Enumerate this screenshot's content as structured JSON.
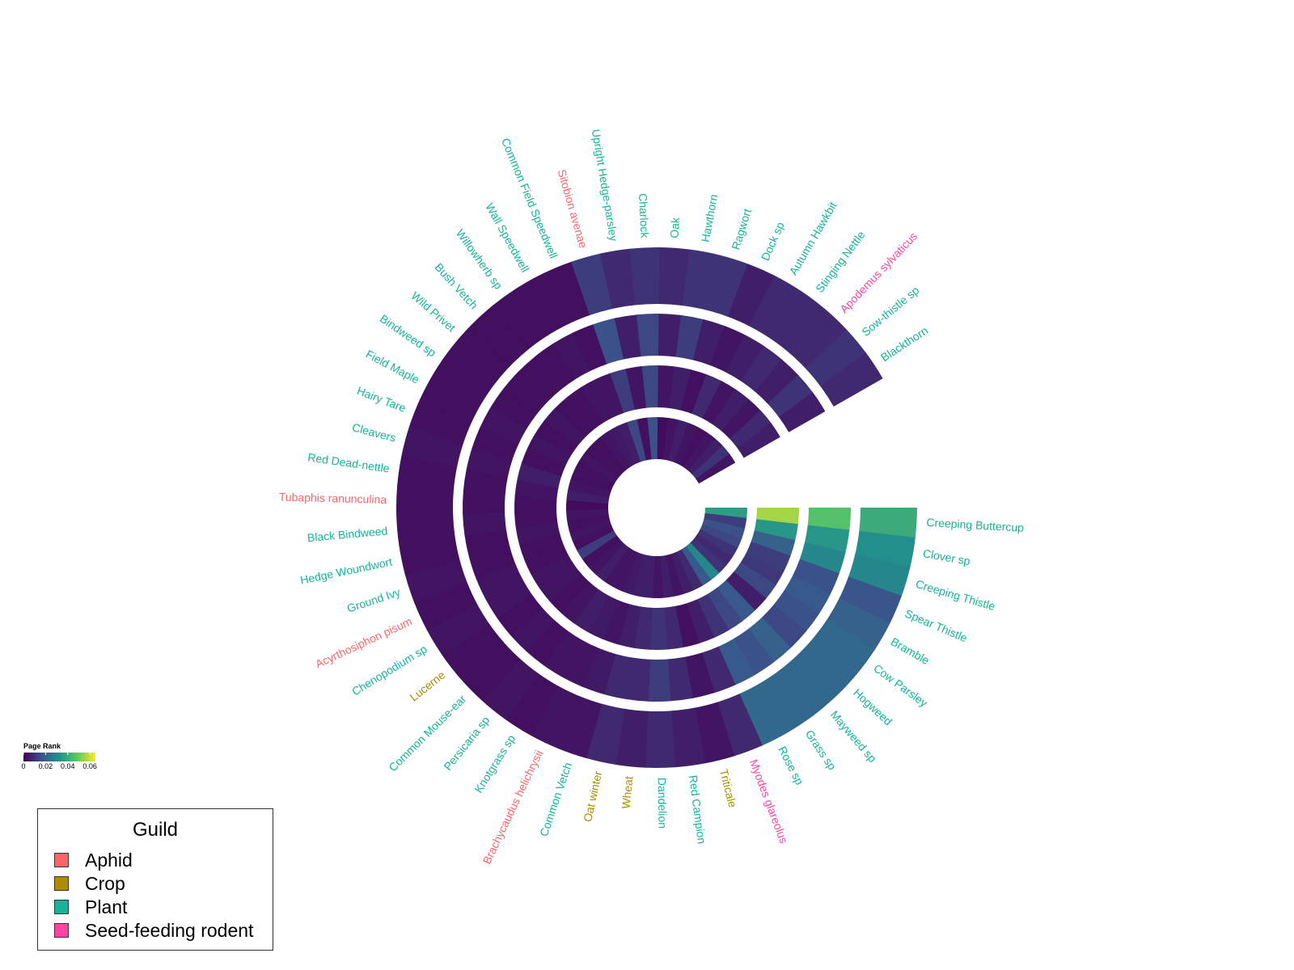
{
  "chart_data": {
    "type": "radial_heatmap",
    "title": "",
    "colorbar": {
      "title": "Page Rank",
      "ticks": [
        "0",
        "0.02",
        "0.04",
        "0.06"
      ],
      "tick_values": [
        0,
        0.02,
        0.04,
        0.06
      ],
      "range": [
        0,
        0.065
      ],
      "colormap": "viridis"
    },
    "rings": 4,
    "categories": [
      {
        "label": "Creeping Buttercup",
        "guild": "Plant",
        "values": [
          0.036,
          0.056,
          0.046,
          0.04
        ]
      },
      {
        "label": "Clover sp",
        "guild": "Plant",
        "values": [
          0.012,
          0.034,
          0.034,
          0.032
        ]
      },
      {
        "label": "Creeping Thistle",
        "guild": "Plant",
        "values": [
          0.016,
          0.02,
          0.03,
          0.03
        ]
      },
      {
        "label": "Spear Thistle",
        "guild": "Plant",
        "values": [
          0.014,
          0.012,
          0.016,
          0.017
        ]
      },
      {
        "label": "Bramble",
        "guild": "Plant",
        "values": [
          0.01,
          0.011,
          0.018,
          0.02
        ]
      },
      {
        "label": "Cow Parsley",
        "guild": "Plant",
        "values": [
          0.008,
          0.014,
          0.016,
          0.022
        ]
      },
      {
        "label": "Hogweed",
        "guild": "Plant",
        "values": [
          0.01,
          0.006,
          0.014,
          0.022
        ]
      },
      {
        "label": "Mayweed sp",
        "guild": "Plant",
        "values": [
          0.03,
          0.018,
          0.02,
          0.022
        ]
      },
      {
        "label": "Grass sp",
        "guild": "Plant",
        "values": [
          0.018,
          0.014,
          0.016,
          0.022
        ]
      },
      {
        "label": "Rose sp",
        "guild": "Plant",
        "values": [
          0.008,
          0.01,
          0.018,
          0.022
        ]
      },
      {
        "label": "Myodes glareolus",
        "guild": "Seed-feeding rodent",
        "values": [
          0.006,
          0.006,
          0.008,
          0.008
        ]
      },
      {
        "label": "Triticale",
        "guild": "Crop",
        "values": [
          0.004,
          0.003,
          0.004,
          0.004
        ]
      },
      {
        "label": "Red Campion",
        "guild": "Plant",
        "values": [
          0.006,
          0.008,
          0.008,
          0.006
        ]
      },
      {
        "label": "Dandelion",
        "guild": "Plant",
        "values": [
          0.004,
          0.01,
          0.012,
          0.008
        ]
      },
      {
        "label": "Wheat",
        "guild": "Crop",
        "values": [
          0.006,
          0.008,
          0.008,
          0.006
        ]
      },
      {
        "label": "Oat winter",
        "guild": "Crop",
        "values": [
          0.006,
          0.006,
          0.008,
          0.008
        ]
      },
      {
        "label": "Common Vetch",
        "guild": "Plant",
        "values": [
          0.005,
          0.004,
          0.005,
          0.004
        ]
      },
      {
        "label": "Brachycaudus helichrysii",
        "guild": "Aphid",
        "values": [
          0.004,
          0.005,
          0.004,
          0.004
        ]
      },
      {
        "label": "Knotgrass sp",
        "guild": "Plant",
        "values": [
          0.004,
          0.006,
          0.004,
          0.003
        ]
      },
      {
        "label": "Persicaria sp",
        "guild": "Plant",
        "values": [
          0.006,
          0.004,
          0.003,
          0.004
        ]
      },
      {
        "label": "Common Mouse-ear",
        "guild": "Plant",
        "values": [
          0.004,
          0.003,
          0.004,
          0.003
        ]
      },
      {
        "label": "Lucerne",
        "guild": "Crop",
        "values": [
          0.003,
          0.004,
          0.003,
          0.003
        ]
      },
      {
        "label": "Chenopodium sp",
        "guild": "Plant",
        "values": [
          0.012,
          0.004,
          0.004,
          0.004
        ]
      },
      {
        "label": "Acyrthosiphon pisum",
        "guild": "Aphid",
        "values": [
          0.003,
          0.003,
          0.004,
          0.003
        ]
      },
      {
        "label": "Ground Ivy",
        "guild": "Plant",
        "values": [
          0.004,
          0.003,
          0.003,
          0.004
        ]
      },
      {
        "label": "Hedge Woundwort",
        "guild": "Plant",
        "values": [
          0.003,
          0.004,
          0.003,
          0.003
        ]
      },
      {
        "label": "Black Bindweed",
        "guild": "Plant",
        "values": [
          0.004,
          0.003,
          0.004,
          0.003
        ]
      },
      {
        "label": "Tubaphis ranunculina",
        "guild": "Aphid",
        "values": [
          0.002,
          0.003,
          0.003,
          0.003
        ]
      },
      {
        "label": "Red Dead-nettle",
        "guild": "Plant",
        "values": [
          0.006,
          0.004,
          0.003,
          0.003
        ]
      },
      {
        "label": "Cleavers",
        "guild": "Plant",
        "values": [
          0.004,
          0.006,
          0.004,
          0.004
        ]
      },
      {
        "label": "Hairy Tare",
        "guild": "Plant",
        "values": [
          0.003,
          0.003,
          0.003,
          0.003
        ]
      },
      {
        "label": "Field Maple",
        "guild": "Plant",
        "values": [
          0.003,
          0.004,
          0.004,
          0.003
        ]
      },
      {
        "label": "Bindweed sp",
        "guild": "Plant",
        "values": [
          0.004,
          0.003,
          0.003,
          0.003
        ]
      },
      {
        "label": "Wild Privet",
        "guild": "Plant",
        "values": [
          0.003,
          0.004,
          0.003,
          0.003
        ]
      },
      {
        "label": "Bush Vetch",
        "guild": "Plant",
        "values": [
          0.003,
          0.003,
          0.003,
          0.003
        ]
      },
      {
        "label": "Willowherb sp",
        "guild": "Plant",
        "values": [
          0.004,
          0.003,
          0.003,
          0.003
        ]
      },
      {
        "label": "Wall Speedwell",
        "guild": "Plant",
        "values": [
          0.005,
          0.004,
          0.004,
          0.003
        ]
      },
      {
        "label": "Common Field Speedwell",
        "guild": "Plant",
        "values": [
          0.006,
          0.004,
          0.003,
          0.003
        ]
      },
      {
        "label": "Sitobion avenae",
        "guild": "Aphid",
        "values": [
          0.014,
          0.012,
          0.016,
          0.012
        ]
      },
      {
        "label": "Upright Hedge-parsley",
        "guild": "Plant",
        "values": [
          0.003,
          0.004,
          0.006,
          0.008
        ]
      },
      {
        "label": "Charlock",
        "guild": "Plant",
        "values": [
          0.016,
          0.014,
          0.014,
          0.01
        ]
      },
      {
        "label": "Oak",
        "guild": "Plant",
        "values": [
          0.002,
          0.004,
          0.006,
          0.008
        ]
      },
      {
        "label": "Hawthorn",
        "guild": "Plant",
        "values": [
          0.004,
          0.006,
          0.012,
          0.01
        ]
      },
      {
        "label": "Ragwort",
        "guild": "Plant",
        "values": [
          0.006,
          0.003,
          0.006,
          0.01
        ]
      },
      {
        "label": "Dock sp",
        "guild": "Plant",
        "values": [
          0.004,
          0.008,
          0.004,
          0.006
        ]
      },
      {
        "label": "Autumn Hawkbit",
        "guild": "Plant",
        "values": [
          0.003,
          0.004,
          0.006,
          0.008
        ]
      },
      {
        "label": "Stinging Nettle",
        "guild": "Plant",
        "values": [
          0.004,
          0.006,
          0.008,
          0.008
        ]
      },
      {
        "label": "Apodemus sylvaticus",
        "guild": "Seed-feeding rodent",
        "values": [
          0.006,
          0.004,
          0.006,
          0.008
        ]
      },
      {
        "label": "Sow-thistle sp",
        "guild": "Plant",
        "values": [
          0.01,
          0.008,
          0.01,
          0.01
        ]
      },
      {
        "label": "Blackthorn",
        "guild": "Plant",
        "values": [
          0.004,
          0.006,
          0.006,
          0.008
        ]
      }
    ]
  },
  "legend": {
    "title": "Guild",
    "items": [
      {
        "label": "Aphid",
        "color": "#F8666A"
      },
      {
        "label": "Crop",
        "color": "#AE8B00"
      },
      {
        "label": "Plant",
        "color": "#15B39A"
      },
      {
        "label": "Seed-feeding rodent",
        "color": "#FF44A3"
      }
    ]
  },
  "guild_colors": {
    "Aphid": "#F8666A",
    "Crop": "#AE8B00",
    "Plant": "#15B39A",
    "Seed-feeding rodent": "#FF44A3"
  }
}
